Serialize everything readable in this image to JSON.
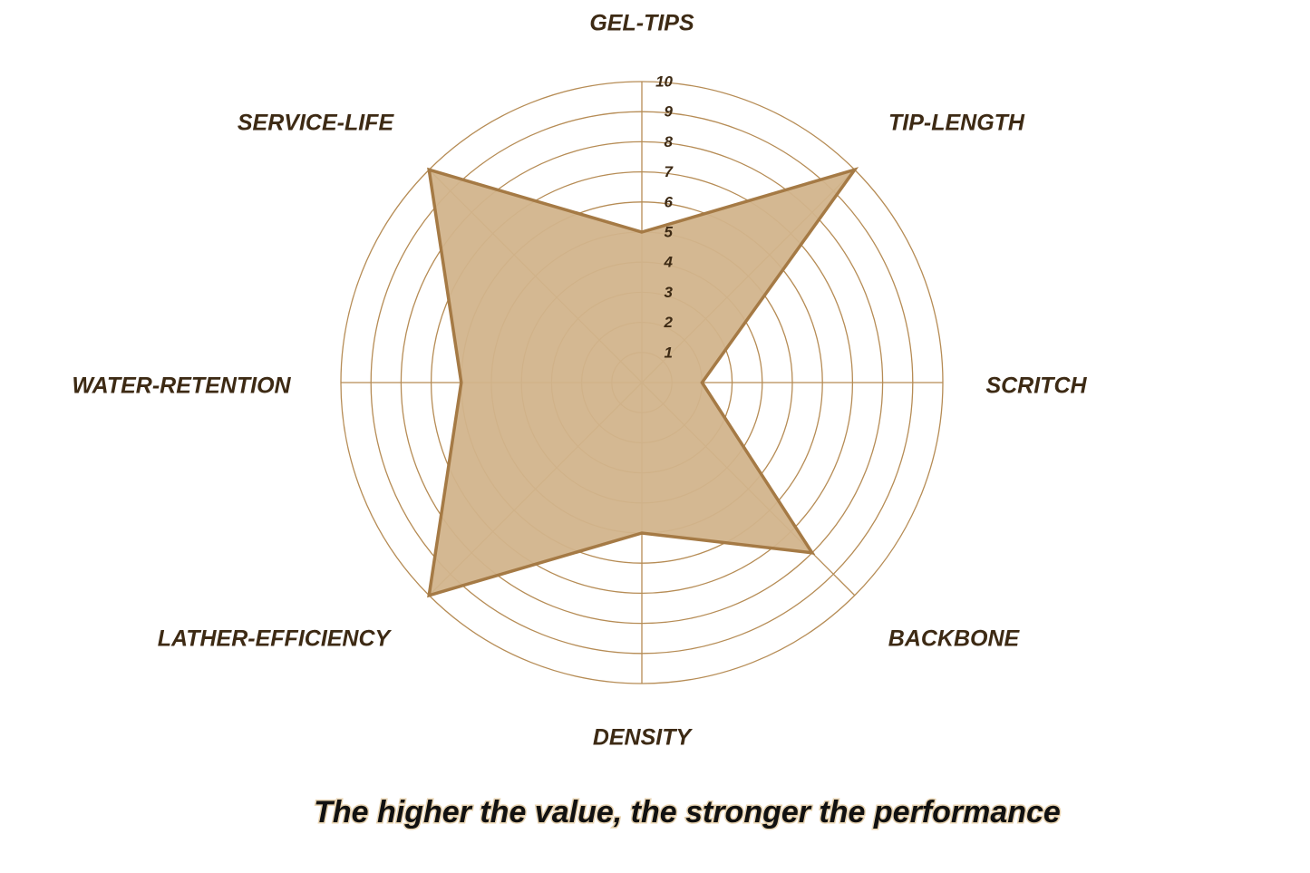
{
  "chart_data": {
    "type": "radar",
    "categories": [
      "GEL-TIPS",
      "TIP-LENGTH",
      "SCRITCH",
      "BACKBONE",
      "DENSITY",
      "LATHER-EFFICIENCY",
      "WATER-RETENTION",
      "SERVICE-LIFE"
    ],
    "series": [
      {
        "color": "#d2b48c",
        "values": [
          5,
          10,
          2,
          8,
          5,
          10,
          6,
          10
        ]
      }
    ],
    "rlim": [
      0,
      10
    ],
    "rticks": [
      1,
      2,
      3,
      4,
      5,
      6,
      7,
      8,
      9,
      10
    ],
    "grid": true,
    "grid_color": "#b68c55",
    "line_color": "#a57a45",
    "caption": "The higher the value, the stronger the performance"
  }
}
